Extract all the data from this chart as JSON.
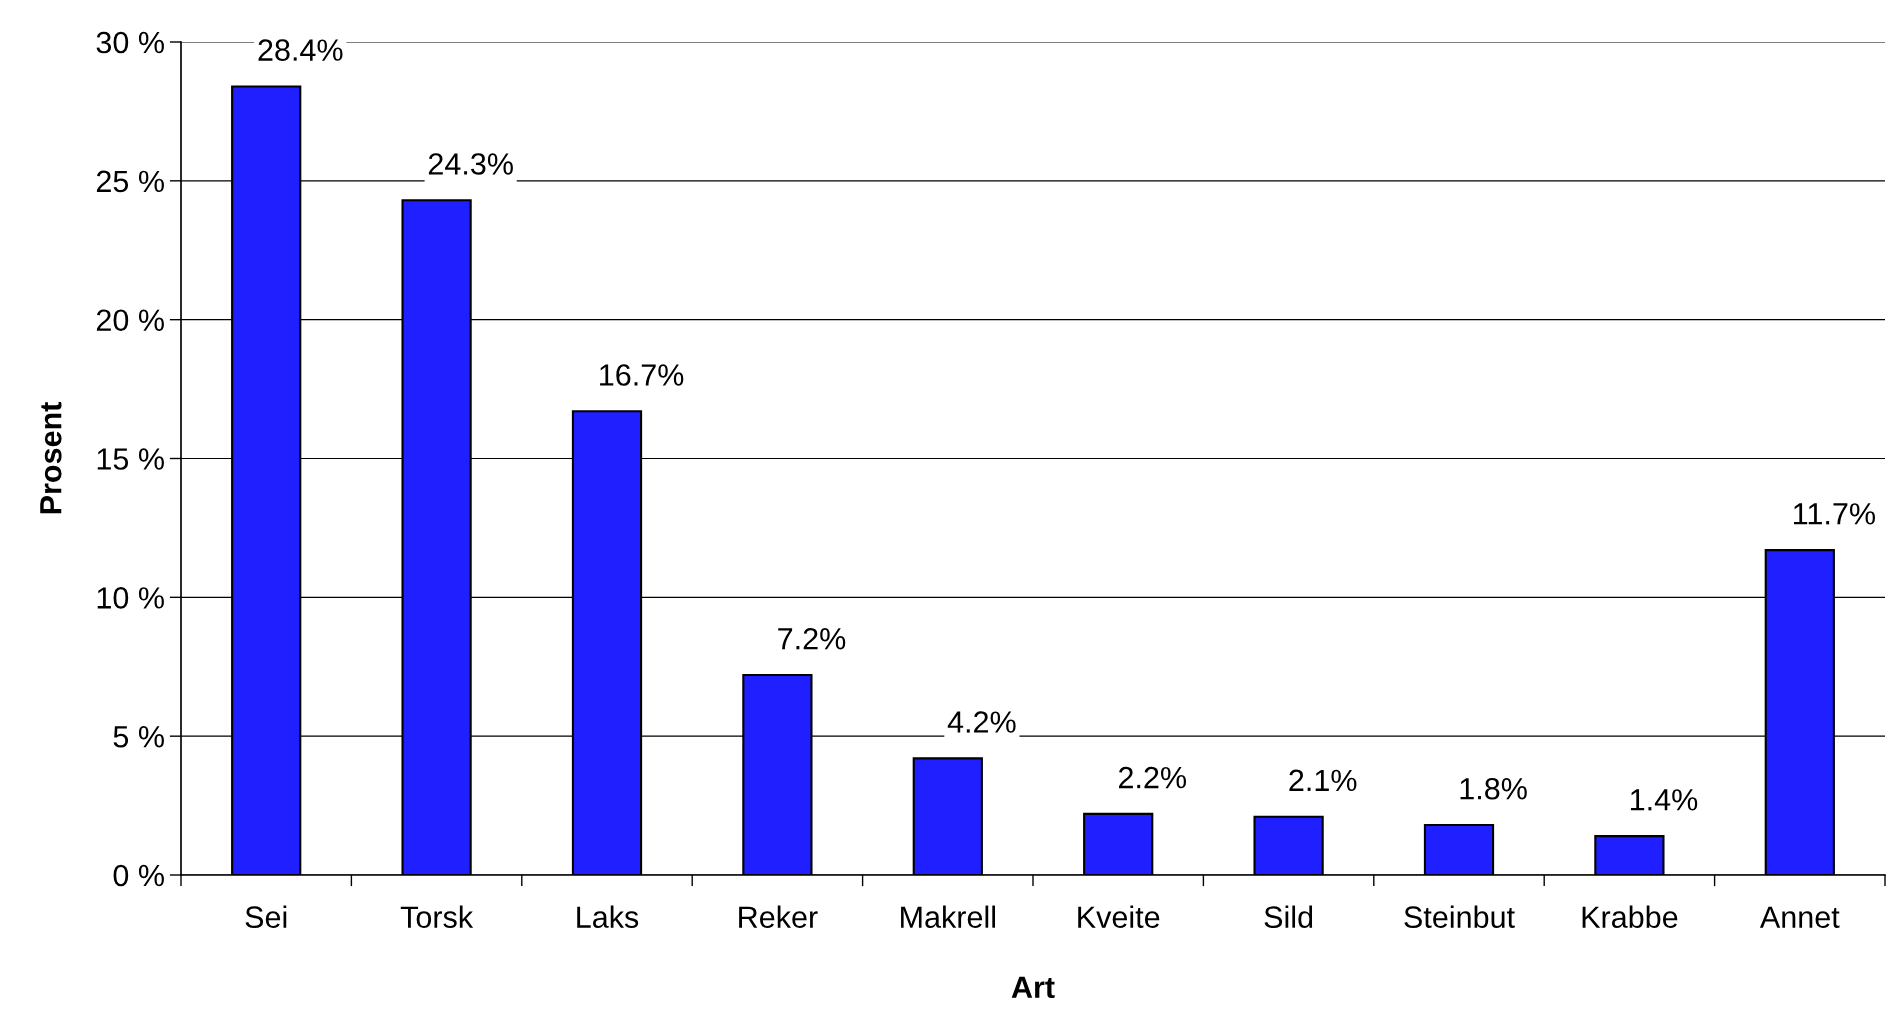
{
  "chart_data": {
    "type": "bar",
    "xlabel": "Art",
    "ylabel": "Prosent",
    "categories": [
      "Sei",
      "Torsk",
      "Laks",
      "Reker",
      "Makrell",
      "Kveite",
      "Sild",
      "Steinbut",
      "Krabbe",
      "Annet"
    ],
    "values": [
      28.4,
      24.3,
      16.7,
      7.2,
      4.2,
      2.2,
      2.1,
      1.8,
      1.4,
      11.7
    ],
    "value_labels": [
      "28.4%",
      "24.3%",
      "16.7%",
      "7.2%",
      "4.2%",
      "2.2%",
      "2.1%",
      "1.8%",
      "1.4%",
      "11.7%"
    ],
    "color": "#1f1fff",
    "ylim": [
      0,
      30
    ],
    "yticks": [
      {
        "value": 0,
        "label": "0 %"
      },
      {
        "value": 5,
        "label": "5 %"
      },
      {
        "value": 10,
        "label": "10 %"
      },
      {
        "value": 15,
        "label": "15 %"
      },
      {
        "value": 20,
        "label": "20 %"
      },
      {
        "value": 25,
        "label": "25 %"
      },
      {
        "value": 30,
        "label": "30 %"
      }
    ],
    "grid": "y",
    "legend": false
  }
}
